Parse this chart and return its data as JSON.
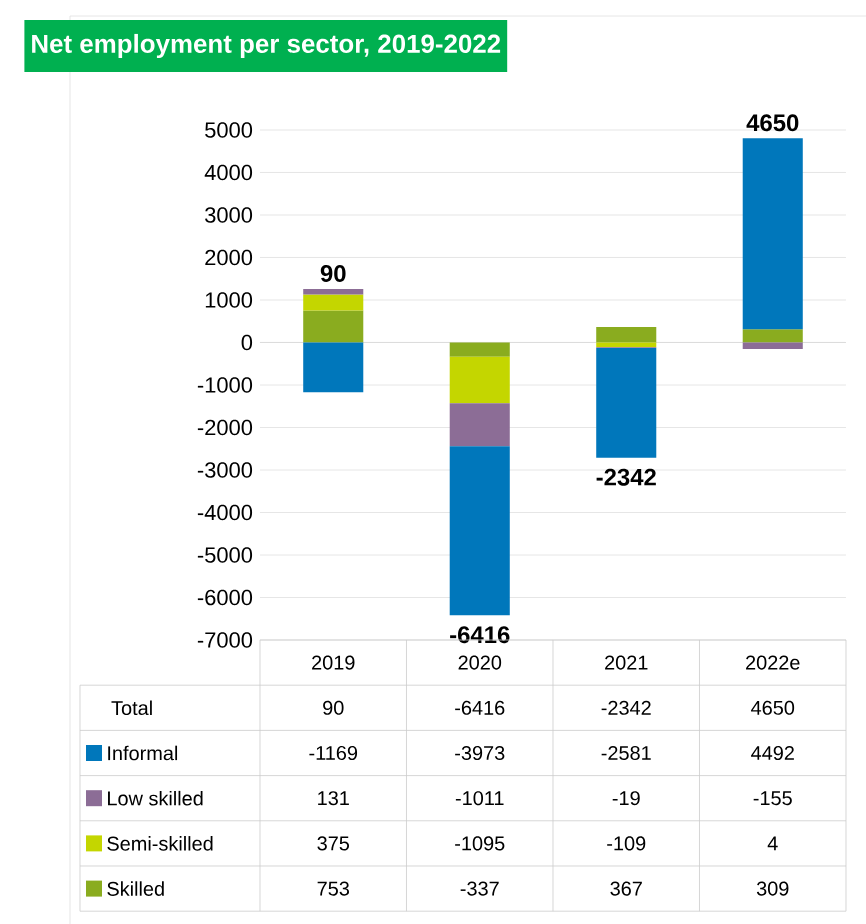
{
  "chart_data": {
    "type": "bar",
    "stacked": true,
    "title": "Net employment per sector, 2019-2022",
    "categories": [
      "2019",
      "2020",
      "2021",
      "2022e"
    ],
    "series": [
      {
        "name": "Skilled",
        "color": "#8aac1f",
        "values": [
          753,
          -337,
          367,
          309
        ]
      },
      {
        "name": "Semi-skilled",
        "color": "#c4d600",
        "values": [
          375,
          -1095,
          -109,
          4
        ]
      },
      {
        "name": "Low skilled",
        "color": "#8c6d96",
        "values": [
          131,
          -1011,
          -19,
          -155
        ]
      },
      {
        "name": "Informal",
        "color": "#0077bb",
        "values": [
          -1169,
          -3973,
          -2581,
          4492
        ]
      }
    ],
    "totals": [
      "90",
      "-6416",
      "-2342",
      "4650"
    ],
    "annotations": [
      "Total"
    ],
    "ylim": [
      -7000,
      5000
    ],
    "yticks": [
      -7000,
      -6000,
      -5000,
      -4000,
      -3000,
      -2000,
      -1000,
      0,
      1000,
      2000,
      3000,
      4000,
      5000
    ],
    "data_labels": true,
    "legend": "bottom",
    "grid": "y"
  }
}
